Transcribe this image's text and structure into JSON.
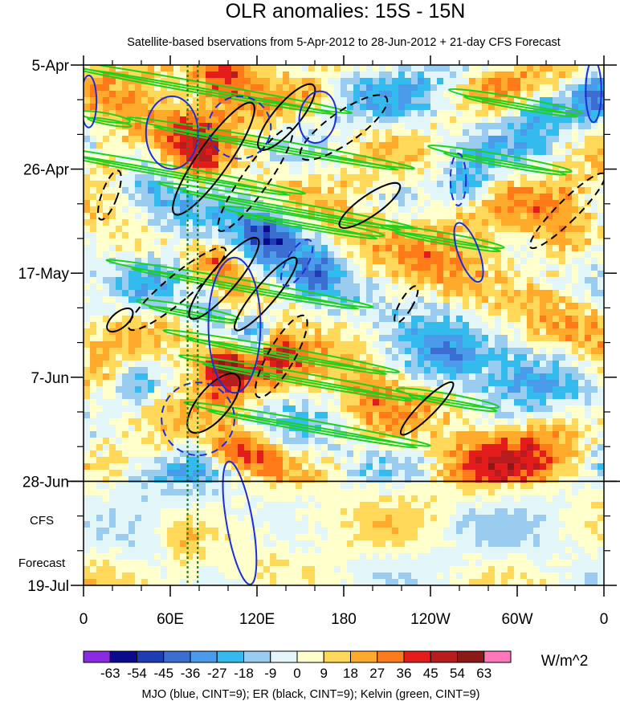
{
  "chart_data": {
    "type": "heatmap",
    "title": "OLR anomalies: 15S - 15N",
    "subtitle": "Satellite-based bservations from 5-Apr-2012 to 28-Jun-2012 + 21-day CFS Forecast",
    "x_tick_labels": [
      "0",
      "60E",
      "120E",
      "180",
      "120W",
      "60W",
      "0"
    ],
    "x_tick_values_deg_east": [
      0,
      60,
      120,
      180,
      240,
      300,
      360
    ],
    "xlim_deg_east": [
      0,
      360
    ],
    "y_tick_labels": [
      "5-Apr",
      "26-Apr",
      "17-May",
      "7-Jun",
      "28-Jun",
      "19-Jul"
    ],
    "y_tick_dates": [
      "2012-04-05",
      "2012-04-26",
      "2012-05-17",
      "2012-06-07",
      "2012-06-28",
      "2012-07-19"
    ],
    "ylim_dates": [
      "2012-04-05",
      "2012-07-19"
    ],
    "y_axis_direction": "time increases downward",
    "observation_end_date": "2012-06-28",
    "forecast_note": [
      "CFS",
      "Forecast"
    ],
    "colorbar": {
      "levels": [
        -63,
        -54,
        -45,
        -36,
        -27,
        -18,
        -9,
        0,
        9,
        18,
        27,
        36,
        45,
        54,
        63
      ],
      "labels": [
        "-63",
        "-54",
        "-45",
        "-36",
        "-27",
        "-18",
        "-9",
        "0",
        "9",
        "18",
        "27",
        "36",
        "45",
        "54",
        "63"
      ],
      "colors": [
        "#8a2be2",
        "#0a0a8c",
        "#1e3cb4",
        "#3c6ed2",
        "#4a9bea",
        "#33bbee",
        "#99ccee",
        "#e2f5f9",
        "#ffffcc",
        "#ffd85a",
        "#ffaa2a",
        "#ff7a18",
        "#e41b1b",
        "#b81d1d",
        "#8c1818",
        "#ff77bb"
      ],
      "units": "W/m^2"
    },
    "contour_legend": "MJO (blue, CINT=9); ER (black, CINT=9); Kelvin (green, CINT=9)",
    "contour_colors": {
      "MJO": "#1a2fd8",
      "ER": "#000000",
      "Kelvin": "#1fd11f"
    },
    "reference_lines": [
      {
        "type": "vertical",
        "style": "dotted",
        "color": "#118a11",
        "lon_deg_east": 72
      },
      {
        "type": "vertical",
        "style": "dotted",
        "color": "#118a11",
        "lon_deg_east": 79
      },
      {
        "type": "horizontal",
        "style": "solid",
        "color": "#000000",
        "date": "2012-06-28"
      }
    ]
  }
}
